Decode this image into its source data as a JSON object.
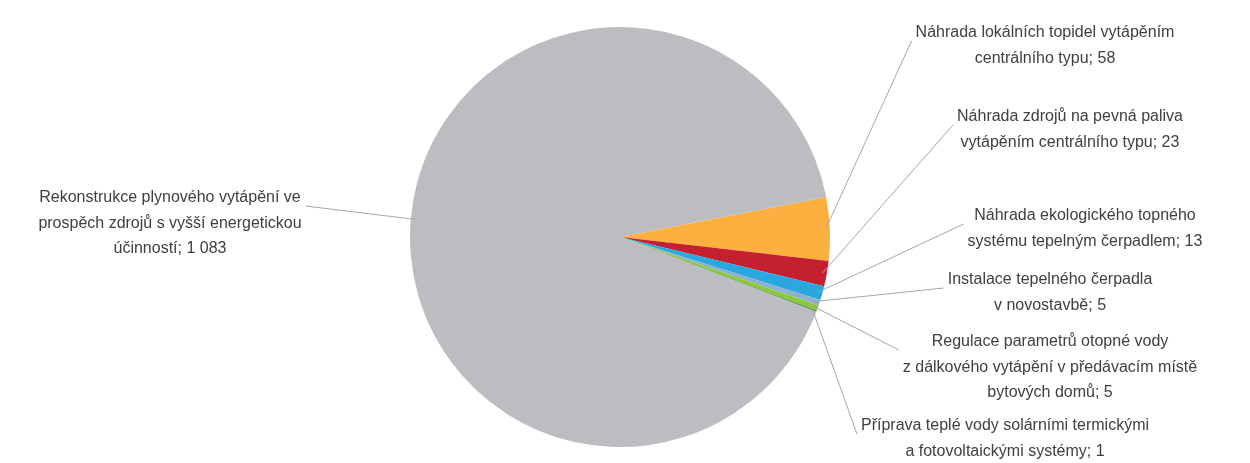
{
  "chart_data": {
    "type": "pie",
    "categories": [
      "Náhrada lokálních topidel vytápěním centrálního typu; 58",
      "Náhrada zdrojů na pevná paliva vytápěním centrálního typu; 23",
      "Náhrada ekologického topného systému tepelným čerpadlem; 13",
      "Instalace tepelného čerpadla v novostavbě; 5",
      "Regulace parametrů otopné vody z dálkového vytápění v předávacím místě bytových domů; 5",
      "Příprava teplé vody solárními termickými a fotovoltaickými systémy; 1",
      "Rekonstrukce plynového vytápění ve prospěch zdrojů s vyšší energetickou účinností; 1 083"
    ],
    "values": [
      58,
      23,
      13,
      5,
      5,
      1,
      1083
    ],
    "colors": [
      "#fbb040",
      "#c5202f",
      "#29a8e0",
      "#8fb0cc",
      "#8dc63f",
      "#3d8b3d",
      "#bcbdc0"
    ],
    "legend": false
  }
}
